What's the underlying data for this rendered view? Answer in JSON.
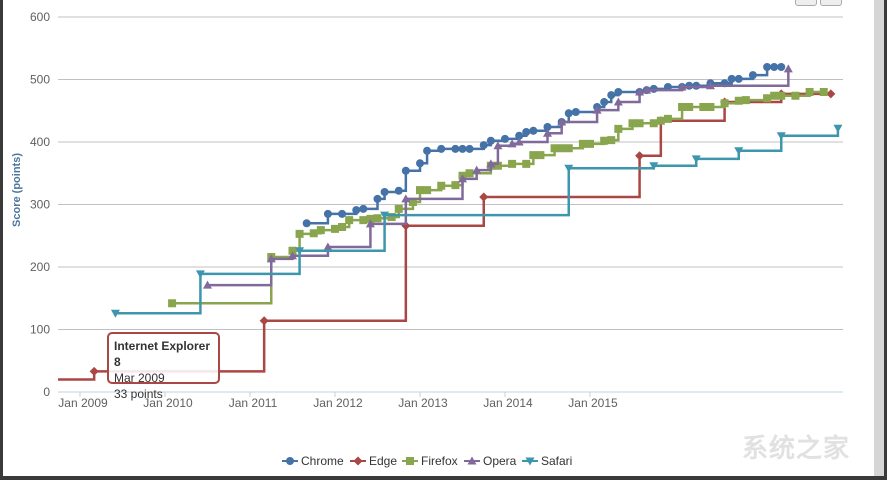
{
  "chart_data": {
    "type": "line",
    "step": true,
    "title": "",
    "xlabel": "",
    "ylabel": "Score (points)",
    "ylim": [
      0,
      600
    ],
    "yticks": [
      0,
      100,
      200,
      300,
      400,
      500,
      600
    ],
    "xtick_labels": [
      "Jan 2009",
      "Jan 2010",
      "Jan 2011",
      "Jan 2012",
      "Jan 2013",
      "Jan 2014",
      "Jan 2015"
    ],
    "grid": "horizontal",
    "legend_position": "bottom",
    "series": [
      {
        "name": "Chrome",
        "color": "#4572A7",
        "marker": "circle",
        "points": [
          [
            "2011-09",
            270
          ],
          [
            "2011-12",
            285
          ],
          [
            "2012-02",
            285
          ],
          [
            "2012-04",
            291
          ],
          [
            "2012-05",
            293
          ],
          [
            "2012-07",
            309
          ],
          [
            "2012-08",
            320
          ],
          [
            "2012-10",
            322
          ],
          [
            "2012-11",
            354
          ],
          [
            "2013-01",
            366
          ],
          [
            "2013-02",
            386
          ],
          [
            "2013-04",
            389
          ],
          [
            "2013-06",
            389
          ],
          [
            "2013-07",
            389
          ],
          [
            "2013-08",
            389
          ],
          [
            "2013-10",
            395
          ],
          [
            "2013-11",
            402
          ],
          [
            "2014-01",
            405
          ],
          [
            "2014-03",
            410
          ],
          [
            "2014-04",
            416
          ],
          [
            "2014-05",
            418
          ],
          [
            "2014-07",
            424
          ],
          [
            "2014-09",
            432
          ],
          [
            "2014-10",
            446
          ],
          [
            "2014-11",
            448
          ],
          [
            "2015-02",
            456
          ],
          [
            "2015-03",
            464
          ],
          [
            "2015-04",
            475
          ],
          [
            "2015-05",
            480
          ],
          [
            "2015-08",
            480
          ],
          [
            "2015-09",
            483
          ],
          [
            "2015-10",
            485
          ],
          [
            "2015-12",
            488
          ],
          [
            "2016-02",
            488
          ],
          [
            "2016-03",
            490
          ],
          [
            "2016-04",
            490
          ],
          [
            "2016-06",
            494
          ],
          [
            "2016-08",
            494
          ],
          [
            "2016-09",
            501
          ],
          [
            "2016-10",
            501
          ],
          [
            "2016-12",
            507
          ],
          [
            "2017-02",
            520
          ],
          [
            "2017-03",
            520
          ],
          [
            "2017-04",
            520
          ]
        ]
      },
      {
        "name": "Edge",
        "color": "#AA4643",
        "marker": "diamond",
        "points": [
          [
            "2008-09",
            20
          ],
          [
            "2009-03",
            33
          ],
          [
            "2011-03",
            114
          ],
          [
            "2012-11",
            266
          ],
          [
            "2013-10",
            312
          ],
          [
            "2015-08",
            378
          ],
          [
            "2015-11",
            434
          ],
          [
            "2016-08",
            464
          ],
          [
            "2017-04",
            477
          ],
          [
            "2017-11",
            477
          ]
        ]
      },
      {
        "name": "Firefox",
        "color": "#89A54E",
        "marker": "square",
        "points": [
          [
            "2010-02",
            142
          ],
          [
            "2011-04",
            216
          ],
          [
            "2011-07",
            226
          ],
          [
            "2011-08",
            253
          ],
          [
            "2011-10",
            254
          ],
          [
            "2011-11",
            259
          ],
          [
            "2012-01",
            261
          ],
          [
            "2012-02",
            264
          ],
          [
            "2012-03",
            275
          ],
          [
            "2012-05",
            275
          ],
          [
            "2012-06",
            277
          ],
          [
            "2012-07",
            278
          ],
          [
            "2012-09",
            280
          ],
          [
            "2012-10",
            293
          ],
          [
            "2012-12",
            304
          ],
          [
            "2013-01",
            323
          ],
          [
            "2013-02",
            323
          ],
          [
            "2013-04",
            330
          ],
          [
            "2013-06",
            331
          ],
          [
            "2013-07",
            346
          ],
          [
            "2013-08",
            350
          ],
          [
            "2013-11",
            362
          ],
          [
            "2013-12",
            362
          ],
          [
            "2014-02",
            365
          ],
          [
            "2014-04",
            365
          ],
          [
            "2014-05",
            379
          ],
          [
            "2014-06",
            379
          ],
          [
            "2014-08",
            390
          ],
          [
            "2014-09",
            390
          ],
          [
            "2014-10",
            390
          ],
          [
            "2014-12",
            397
          ],
          [
            "2015-01",
            397
          ],
          [
            "2015-03",
            402
          ],
          [
            "2015-04",
            403
          ],
          [
            "2015-05",
            421
          ],
          [
            "2015-07",
            430
          ],
          [
            "2015-08",
            430
          ],
          [
            "2015-10",
            430
          ],
          [
            "2015-11",
            434
          ],
          [
            "2015-12",
            437
          ],
          [
            "2016-02",
            456
          ],
          [
            "2016-03",
            456
          ],
          [
            "2016-05",
            456
          ],
          [
            "2016-06",
            456
          ],
          [
            "2016-08",
            462
          ],
          [
            "2016-10",
            466
          ],
          [
            "2016-11",
            467
          ],
          [
            "2017-02",
            470
          ],
          [
            "2017-03",
            474
          ],
          [
            "2017-04",
            474
          ],
          [
            "2017-06",
            474
          ],
          [
            "2017-08",
            480
          ],
          [
            "2017-10",
            480
          ]
        ]
      },
      {
        "name": "Opera",
        "color": "#80699B",
        "marker": "triangle",
        "points": [
          [
            "2010-07",
            171
          ],
          [
            "2011-04",
            213
          ],
          [
            "2011-07",
            218
          ],
          [
            "2011-12",
            232
          ],
          [
            "2012-06",
            269
          ],
          [
            "2012-11",
            309
          ],
          [
            "2013-07",
            341
          ],
          [
            "2013-09",
            355
          ],
          [
            "2013-11",
            365
          ],
          [
            "2013-12",
            394
          ],
          [
            "2014-02",
            397
          ],
          [
            "2014-03",
            400
          ],
          [
            "2014-07",
            414
          ],
          [
            "2014-09",
            432
          ],
          [
            "2015-02",
            451
          ],
          [
            "2015-05",
            464
          ],
          [
            "2015-08",
            480
          ],
          [
            "2015-09",
            483
          ],
          [
            "2016-02",
            488
          ],
          [
            "2016-06",
            490
          ],
          [
            "2017-05",
            517
          ]
        ]
      },
      {
        "name": "Safari",
        "color": "#3D96AE",
        "marker": "triangle-down",
        "points": [
          [
            "2009-06",
            126
          ],
          [
            "2010-06",
            189
          ],
          [
            "2011-08",
            226
          ],
          [
            "2012-08",
            283
          ],
          [
            "2014-10",
            358
          ],
          [
            "2015-10",
            362
          ],
          [
            "2016-04",
            373
          ],
          [
            "2016-10",
            386
          ],
          [
            "2017-04",
            410
          ],
          [
            "2017-12",
            422
          ]
        ]
      }
    ],
    "tooltip": {
      "title": "Internet Explorer 8",
      "date": "Mar 2009",
      "value": "33 points"
    }
  },
  "watermark": "系统之家"
}
